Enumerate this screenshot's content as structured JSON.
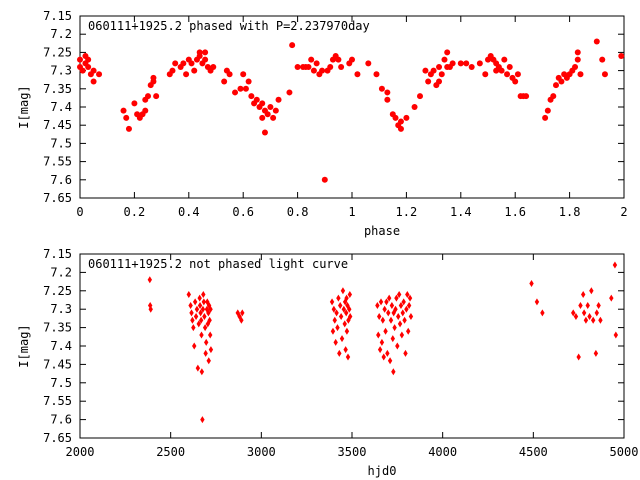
{
  "chart_data": [
    {
      "type": "scatter",
      "title": "060111+1925.2 phased with P=2.237970day",
      "xlabel": "phase",
      "ylabel": "I[mag]",
      "xlim": [
        0,
        2
      ],
      "ylim": [
        7.15,
        7.65
      ],
      "y_inverted": true,
      "grid": false,
      "marker": "filled-circle",
      "color": "#ff0000",
      "x_ticks": [
        "0",
        "0.2",
        "0.4",
        "0.6",
        "0.8",
        "1",
        "1.2",
        "1.4",
        "1.6",
        "1.8",
        "2"
      ],
      "y_ticks": [
        "7.15",
        "7.2",
        "7.25",
        "7.3",
        "7.35",
        "7.4",
        "7.45",
        "7.5",
        "7.55",
        "7.6",
        "7.65"
      ],
      "points": [
        [
          0.0,
          7.27
        ],
        [
          0.0,
          7.29
        ],
        [
          0.01,
          7.3
        ],
        [
          0.02,
          7.26
        ],
        [
          0.02,
          7.28
        ],
        [
          0.03,
          7.29
        ],
        [
          0.03,
          7.27
        ],
        [
          0.04,
          7.31
        ],
        [
          0.05,
          7.33
        ],
        [
          0.05,
          7.3
        ],
        [
          0.07,
          7.31
        ],
        [
          0.16,
          7.41
        ],
        [
          0.17,
          7.43
        ],
        [
          0.18,
          7.46
        ],
        [
          0.2,
          7.39
        ],
        [
          0.21,
          7.42
        ],
        [
          0.22,
          7.43
        ],
        [
          0.23,
          7.42
        ],
        [
          0.24,
          7.38
        ],
        [
          0.24,
          7.41
        ],
        [
          0.25,
          7.37
        ],
        [
          0.26,
          7.34
        ],
        [
          0.27,
          7.32
        ],
        [
          0.27,
          7.33
        ],
        [
          0.28,
          7.37
        ],
        [
          0.33,
          7.31
        ],
        [
          0.34,
          7.3
        ],
        [
          0.35,
          7.28
        ],
        [
          0.37,
          7.29
        ],
        [
          0.38,
          7.28
        ],
        [
          0.39,
          7.31
        ],
        [
          0.4,
          7.27
        ],
        [
          0.41,
          7.28
        ],
        [
          0.42,
          7.3
        ],
        [
          0.43,
          7.27
        ],
        [
          0.44,
          7.25
        ],
        [
          0.44,
          7.26
        ],
        [
          0.45,
          7.28
        ],
        [
          0.46,
          7.25
        ],
        [
          0.46,
          7.27
        ],
        [
          0.47,
          7.29
        ],
        [
          0.48,
          7.3
        ],
        [
          0.49,
          7.29
        ],
        [
          0.53,
          7.33
        ],
        [
          0.54,
          7.3
        ],
        [
          0.55,
          7.31
        ],
        [
          0.57,
          7.36
        ],
        [
          0.59,
          7.35
        ],
        [
          0.6,
          7.31
        ],
        [
          0.61,
          7.35
        ],
        [
          0.62,
          7.33
        ],
        [
          0.63,
          7.37
        ],
        [
          0.64,
          7.39
        ],
        [
          0.65,
          7.38
        ],
        [
          0.66,
          7.4
        ],
        [
          0.67,
          7.39
        ],
        [
          0.67,
          7.43
        ],
        [
          0.68,
          7.41
        ],
        [
          0.68,
          7.47
        ],
        [
          0.69,
          7.42
        ],
        [
          0.7,
          7.4
        ],
        [
          0.71,
          7.43
        ],
        [
          0.72,
          7.41
        ],
        [
          0.73,
          7.38
        ],
        [
          0.77,
          7.36
        ],
        [
          0.78,
          7.23
        ],
        [
          0.8,
          7.29
        ],
        [
          0.82,
          7.29
        ],
        [
          0.83,
          7.29
        ],
        [
          0.84,
          7.29
        ],
        [
          0.85,
          7.27
        ],
        [
          0.86,
          7.3
        ],
        [
          0.87,
          7.28
        ],
        [
          0.88,
          7.31
        ],
        [
          0.89,
          7.3
        ],
        [
          0.9,
          7.6
        ],
        [
          0.91,
          7.3
        ],
        [
          0.92,
          7.29
        ],
        [
          0.93,
          7.27
        ],
        [
          0.94,
          7.26
        ],
        [
          0.95,
          7.27
        ],
        [
          0.96,
          7.29
        ],
        [
          0.99,
          7.28
        ],
        [
          1.0,
          7.27
        ],
        [
          1.02,
          7.31
        ],
        [
          1.06,
          7.28
        ],
        [
          1.09,
          7.31
        ],
        [
          1.11,
          7.35
        ],
        [
          1.13,
          7.38
        ],
        [
          1.13,
          7.36
        ],
        [
          1.15,
          7.42
        ],
        [
          1.16,
          7.43
        ],
        [
          1.17,
          7.45
        ],
        [
          1.18,
          7.46
        ],
        [
          1.18,
          7.44
        ],
        [
          1.2,
          7.43
        ],
        [
          1.23,
          7.4
        ],
        [
          1.25,
          7.37
        ],
        [
          1.27,
          7.3
        ],
        [
          1.28,
          7.33
        ],
        [
          1.29,
          7.31
        ],
        [
          1.3,
          7.3
        ],
        [
          1.31,
          7.34
        ],
        [
          1.32,
          7.33
        ],
        [
          1.32,
          7.29
        ],
        [
          1.33,
          7.31
        ],
        [
          1.34,
          7.27
        ],
        [
          1.35,
          7.29
        ],
        [
          1.35,
          7.25
        ],
        [
          1.36,
          7.29
        ],
        [
          1.37,
          7.28
        ],
        [
          1.4,
          7.28
        ],
        [
          1.42,
          7.28
        ],
        [
          1.44,
          7.29
        ],
        [
          1.47,
          7.28
        ],
        [
          1.49,
          7.31
        ],
        [
          1.5,
          7.27
        ],
        [
          1.51,
          7.26
        ],
        [
          1.52,
          7.27
        ],
        [
          1.53,
          7.3
        ],
        [
          1.53,
          7.28
        ],
        [
          1.54,
          7.29
        ],
        [
          1.55,
          7.3
        ],
        [
          1.56,
          7.27
        ],
        [
          1.57,
          7.31
        ],
        [
          1.58,
          7.29
        ],
        [
          1.59,
          7.32
        ],
        [
          1.6,
          7.33
        ],
        [
          1.61,
          7.31
        ],
        [
          1.62,
          7.37
        ],
        [
          1.63,
          7.37
        ],
        [
          1.64,
          7.37
        ],
        [
          1.71,
          7.43
        ],
        [
          1.72,
          7.41
        ],
        [
          1.73,
          7.38
        ],
        [
          1.74,
          7.37
        ],
        [
          1.75,
          7.34
        ],
        [
          1.76,
          7.32
        ],
        [
          1.77,
          7.33
        ],
        [
          1.78,
          7.31
        ],
        [
          1.79,
          7.32
        ],
        [
          1.8,
          7.31
        ],
        [
          1.81,
          7.3
        ],
        [
          1.82,
          7.29
        ],
        [
          1.83,
          7.27
        ],
        [
          1.83,
          7.25
        ],
        [
          1.84,
          7.31
        ],
        [
          1.9,
          7.22
        ],
        [
          1.92,
          7.27
        ],
        [
          1.93,
          7.31
        ],
        [
          1.99,
          7.26
        ]
      ]
    },
    {
      "type": "scatter",
      "title": "060111+1925.2 not phased light curve",
      "xlabel": "hjd0",
      "ylabel": "I[mag]",
      "xlim": [
        2000,
        5000
      ],
      "ylim": [
        7.15,
        7.65
      ],
      "y_inverted": true,
      "grid": false,
      "marker": "diamond",
      "color": "#ff0000",
      "x_ticks": [
        "2000",
        "2500",
        "3000",
        "3500",
        "4000",
        "4500",
        "5000"
      ],
      "y_ticks": [
        "7.15",
        "7.2",
        "7.25",
        "7.3",
        "7.35",
        "7.4",
        "7.45",
        "7.5",
        "7.55",
        "7.6",
        "7.65"
      ],
      "points": [
        [
          2385,
          7.22
        ],
        [
          2387,
          7.29
        ],
        [
          2390,
          7.3
        ],
        [
          2600,
          7.26
        ],
        [
          2610,
          7.29
        ],
        [
          2615,
          7.31
        ],
        [
          2620,
          7.33
        ],
        [
          2625,
          7.35
        ],
        [
          2630,
          7.4
        ],
        [
          2635,
          7.28
        ],
        [
          2640,
          7.32
        ],
        [
          2645,
          7.3
        ],
        [
          2650,
          7.46
        ],
        [
          2655,
          7.34
        ],
        [
          2660,
          7.27
        ],
        [
          2662,
          7.29
        ],
        [
          2665,
          7.31
        ],
        [
          2668,
          7.33
        ],
        [
          2670,
          7.37
        ],
        [
          2672,
          7.47
        ],
        [
          2675,
          7.6
        ],
        [
          2678,
          7.3
        ],
        [
          2680,
          7.26
        ],
        [
          2683,
          7.28
        ],
        [
          2686,
          7.32
        ],
        [
          2690,
          7.35
        ],
        [
          2693,
          7.42
        ],
        [
          2696,
          7.39
        ],
        [
          2700,
          7.3
        ],
        [
          2702,
          7.28
        ],
        [
          2705,
          7.34
        ],
        [
          2708,
          7.31
        ],
        [
          2710,
          7.44
        ],
        [
          2712,
          7.29
        ],
        [
          2715,
          7.33
        ],
        [
          2718,
          7.37
        ],
        [
          2720,
          7.3
        ],
        [
          2722,
          7.41
        ],
        [
          2870,
          7.31
        ],
        [
          2880,
          7.32
        ],
        [
          2890,
          7.33
        ],
        [
          2895,
          7.31
        ],
        [
          3390,
          7.28
        ],
        [
          3395,
          7.36
        ],
        [
          3400,
          7.3
        ],
        [
          3405,
          7.33
        ],
        [
          3410,
          7.39
        ],
        [
          3415,
          7.31
        ],
        [
          3420,
          7.35
        ],
        [
          3425,
          7.27
        ],
        [
          3430,
          7.42
        ],
        [
          3435,
          7.29
        ],
        [
          3440,
          7.32
        ],
        [
          3445,
          7.38
        ],
        [
          3450,
          7.25
        ],
        [
          3455,
          7.3
        ],
        [
          3460,
          7.34
        ],
        [
          3462,
          7.28
        ],
        [
          3465,
          7.41
        ],
        [
          3468,
          7.31
        ],
        [
          3470,
          7.27
        ],
        [
          3472,
          7.36
        ],
        [
          3475,
          7.29
        ],
        [
          3478,
          7.43
        ],
        [
          3480,
          7.33
        ],
        [
          3485,
          7.3
        ],
        [
          3488,
          7.26
        ],
        [
          3490,
          7.32
        ],
        [
          3640,
          7.29
        ],
        [
          3645,
          7.37
        ],
        [
          3650,
          7.32
        ],
        [
          3655,
          7.41
        ],
        [
          3660,
          7.28
        ],
        [
          3665,
          7.39
        ],
        [
          3670,
          7.33
        ],
        [
          3675,
          7.43
        ],
        [
          3680,
          7.3
        ],
        [
          3685,
          7.36
        ],
        [
          3690,
          7.28
        ],
        [
          3695,
          7.42
        ],
        [
          3700,
          7.31
        ],
        [
          3705,
          7.27
        ],
        [
          3710,
          7.44
        ],
        [
          3715,
          7.33
        ],
        [
          3720,
          7.29
        ],
        [
          3725,
          7.38
        ],
        [
          3728,
          7.47
        ],
        [
          3730,
          7.31
        ],
        [
          3735,
          7.35
        ],
        [
          3740,
          7.3
        ],
        [
          3745,
          7.27
        ],
        [
          3750,
          7.4
        ],
        [
          3755,
          7.32
        ],
        [
          3760,
          7.26
        ],
        [
          3765,
          7.34
        ],
        [
          3770,
          7.29
        ],
        [
          3775,
          7.37
        ],
        [
          3780,
          7.31
        ],
        [
          3785,
          7.28
        ],
        [
          3790,
          7.33
        ],
        [
          3795,
          7.42
        ],
        [
          3800,
          7.3
        ],
        [
          3805,
          7.26
        ],
        [
          3810,
          7.36
        ],
        [
          3815,
          7.29
        ],
        [
          3820,
          7.27
        ],
        [
          3825,
          7.32
        ],
        [
          4490,
          7.23
        ],
        [
          4520,
          7.28
        ],
        [
          4550,
          7.31
        ],
        [
          4720,
          7.31
        ],
        [
          4735,
          7.32
        ],
        [
          4750,
          7.43
        ],
        [
          4760,
          7.29
        ],
        [
          4775,
          7.26
        ],
        [
          4780,
          7.31
        ],
        [
          4790,
          7.33
        ],
        [
          4800,
          7.29
        ],
        [
          4810,
          7.32
        ],
        [
          4820,
          7.25
        ],
        [
          4830,
          7.33
        ],
        [
          4845,
          7.42
        ],
        [
          4850,
          7.31
        ],
        [
          4860,
          7.29
        ],
        [
          4870,
          7.33
        ],
        [
          4930,
          7.27
        ],
        [
          4950,
          7.18
        ],
        [
          4955,
          7.37
        ]
      ]
    }
  ]
}
